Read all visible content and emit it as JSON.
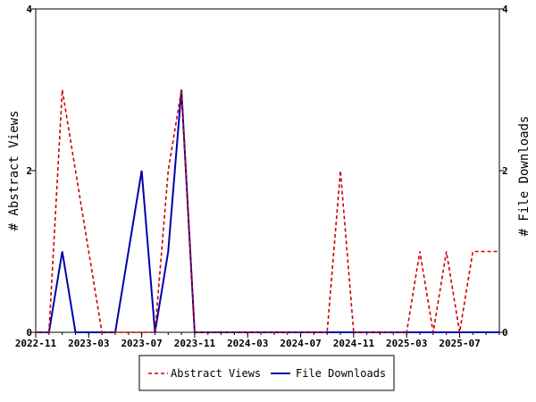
{
  "chart_data": {
    "type": "line",
    "y_left_label": "# Abstract Views",
    "y_right_label": "# File Downloads",
    "ylim_left": [
      0,
      4
    ],
    "ylim_right": [
      0,
      4
    ],
    "y_ticks_left": [
      "0",
      "2",
      "4"
    ],
    "y_ticks_right": [
      "0",
      "2",
      "4"
    ],
    "x_start": "2022-11",
    "x_end": "2025-10",
    "x_ticks": [
      "2022-11",
      "2023-03",
      "2023-07",
      "2023-11",
      "2024-03",
      "2024-07",
      "2024-11",
      "2025-03",
      "2025-07"
    ],
    "months": [
      "2022-11",
      "2022-12",
      "2023-01",
      "2023-02",
      "2023-03",
      "2023-04",
      "2023-05",
      "2023-06",
      "2023-07",
      "2023-08",
      "2023-09",
      "2023-10",
      "2023-11",
      "2023-12",
      "2024-01",
      "2024-02",
      "2024-03",
      "2024-04",
      "2024-05",
      "2024-06",
      "2024-07",
      "2024-08",
      "2024-09",
      "2024-10",
      "2024-11",
      "2024-12",
      "2025-01",
      "2025-02",
      "2025-03",
      "2025-04",
      "2025-05",
      "2025-06",
      "2025-07",
      "2025-08",
      "2025-09",
      "2025-10"
    ],
    "series": [
      {
        "name": "Abstract Views",
        "color": "#cc0000",
        "dash": "dashed",
        "axis": "left",
        "values": [
          0,
          0,
          3,
          2,
          1,
          0,
          0,
          0,
          0,
          0,
          2,
          3,
          0,
          0,
          0,
          0,
          0,
          0,
          0,
          0,
          0,
          0,
          0,
          2,
          0,
          0,
          0,
          0,
          0,
          1,
          0,
          1,
          0,
          1,
          1,
          1
        ]
      },
      {
        "name": "File Downloads",
        "color": "#0000aa",
        "dash": "solid",
        "axis": "right",
        "values": [
          0,
          0,
          1,
          0,
          0,
          0,
          0,
          1,
          2,
          0,
          1,
          3,
          0,
          0,
          0,
          0,
          0,
          0,
          0,
          0,
          0,
          0,
          0,
          0,
          0,
          0,
          0,
          0,
          0,
          0,
          0,
          0,
          0,
          0,
          0,
          0
        ]
      }
    ],
    "legend": {
      "placement": "bottom-center",
      "entries": [
        "Abstract Views",
        "File Downloads"
      ]
    }
  }
}
